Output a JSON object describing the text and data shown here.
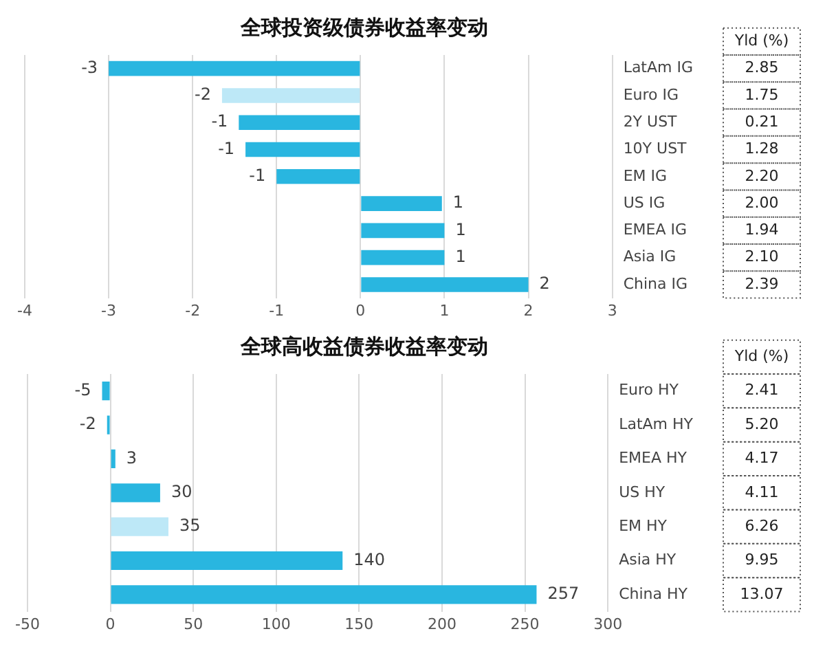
{
  "chart_data": [
    {
      "type": "bar",
      "orientation": "horizontal",
      "title": "全球投资级债券收益率变动",
      "categories": [
        "LatAm IG",
        "Euro IG",
        "2Y UST",
        "10Y UST",
        "EM IG",
        "US IG",
        "EMEA IG",
        "Asia IG",
        "China IG"
      ],
      "values": [
        -3.0,
        -1.65,
        -1.45,
        -1.37,
        -1.0,
        0.97,
        1.0,
        1.0,
        2.0
      ],
      "value_labels": [
        "-3",
        "-2",
        "-1",
        "-1",
        "-1",
        "1",
        "1",
        "1",
        "2"
      ],
      "colors": [
        "#29b6e0",
        "#bde8f7",
        "#29b6e0",
        "#29b6e0",
        "#29b6e0",
        "#29b6e0",
        "#29b6e0",
        "#29b6e0",
        "#29b6e0"
      ],
      "xlim": [
        -4,
        3
      ],
      "xticks": [
        -4,
        -3,
        -2,
        -1,
        0,
        1,
        2,
        3
      ],
      "grid": "x",
      "legend": false,
      "annotations": [
        "Yld (%)",
        "2.85",
        "1.75",
        "0.21",
        "1.28",
        "2.20",
        "2.00",
        "1.94",
        "2.10",
        "2.39"
      ]
    },
    {
      "type": "bar",
      "orientation": "horizontal",
      "title": "全球高收益债券收益率变动",
      "categories": [
        "Euro HY",
        "LatAm HY",
        "EMEA HY",
        "US HY",
        "EM HY",
        "Asia HY",
        "China HY"
      ],
      "values": [
        -5,
        -2,
        3,
        30,
        35,
        140,
        257
      ],
      "data_labels": true,
      "colors": [
        "#29b6e0",
        "#29b6e0",
        "#29b6e0",
        "#29b6e0",
        "#bde8f7",
        "#29b6e0",
        "#29b6e0"
      ],
      "xlim": [
        -50,
        300
      ],
      "xticks": [
        -50,
        0,
        50,
        100,
        150,
        200,
        250,
        300
      ],
      "grid": "x",
      "legend": false,
      "annotations": [
        "Yld (%)",
        "2.41",
        "5.20",
        "4.17",
        "4.11",
        "6.26",
        "9.95",
        "13.07"
      ]
    }
  ]
}
